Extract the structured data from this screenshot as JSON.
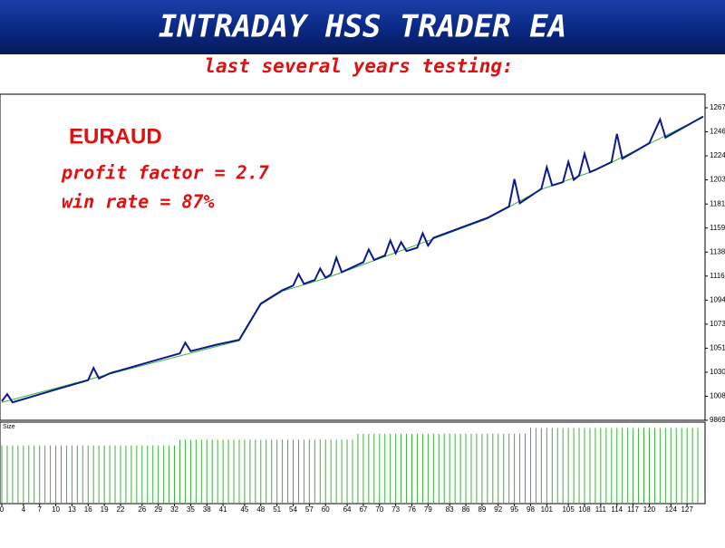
{
  "chart_data": {
    "type": "line",
    "title": "INTRADAY HSS TRADER EA",
    "subtitle": "last several years testing:",
    "annotations": [
      "EURAUD",
      "profit factor = 2.7",
      "win rate = 87%"
    ],
    "xlim": [
      0,
      130
    ],
    "xticks": [
      0,
      4,
      7,
      10,
      13,
      16,
      19,
      22,
      26,
      29,
      32,
      35,
      38,
      41,
      45,
      48,
      51,
      54,
      57,
      60,
      64,
      67,
      70,
      73,
      76,
      79,
      83,
      86,
      89,
      92,
      95,
      98,
      101,
      105,
      108,
      111,
      114,
      117,
      120,
      124,
      127
    ],
    "ylim": [
      9869,
      12800
    ],
    "yticks": [
      9869,
      10085,
      10301,
      10517,
      10733,
      10949,
      11165,
      11381,
      11597,
      11813,
      12030,
      12246,
      12462,
      12678
    ],
    "series": [
      {
        "color": "#0a1a8c",
        "x": [
          0,
          1,
          2,
          10,
          16,
          17,
          18,
          20,
          30,
          33,
          34,
          35,
          40,
          44,
          48,
          52,
          54,
          55,
          56,
          58,
          59,
          60,
          61,
          62,
          63,
          67,
          68,
          69,
          71,
          72,
          73,
          74,
          75,
          77,
          78,
          79,
          80,
          90,
          94,
          95,
          96,
          100,
          101,
          102,
          104,
          105,
          106,
          107,
          108,
          109,
          110,
          113,
          114,
          115,
          120,
          122,
          123,
          130
        ],
        "values": [
          10040,
          10104,
          10030,
          10145,
          10230,
          10340,
          10245,
          10291,
          10429,
          10470,
          10567,
          10490,
          10551,
          10592,
          10917,
          11038,
          11080,
          11184,
          11095,
          11130,
          11233,
          11150,
          11180,
          11331,
          11200,
          11290,
          11404,
          11310,
          11350,
          11485,
          11370,
          11470,
          11390,
          11420,
          11550,
          11440,
          11509,
          11688,
          11790,
          12037,
          11820,
          11950,
          12143,
          11980,
          12010,
          12191,
          12030,
          12070,
          12264,
          12100,
          12120,
          12190,
          12443,
          12220,
          12360,
          12573,
          12410,
          12600
        ]
      },
      {
        "color": "#3cb43c",
        "x": [
          0,
          20,
          44,
          48,
          52,
          60,
          80,
          90,
          100,
          110,
          120,
          130
        ],
        "values": [
          10030,
          10285,
          10585,
          10910,
          11030,
          11145,
          11500,
          11680,
          11945,
          12115,
          12355,
          12595
        ]
      }
    ],
    "size": {
      "label": "Size",
      "color": "#3cb43c",
      "ylim": [
        0,
        0.14
      ],
      "values": [
        0.1,
        0.1,
        0.1,
        0.1,
        0.1,
        0.1,
        0.1,
        0.1,
        0.1,
        0.1,
        0.1,
        0.1,
        0.1,
        0.1,
        0.1,
        0.1,
        0.1,
        0.1,
        0.1,
        0.1,
        0.1,
        0.1,
        0.1,
        0.1,
        0.1,
        0.1,
        0.1,
        0.1,
        0.1,
        0.1,
        0.1,
        0.1,
        0.1,
        0.11,
        0.11,
        0.11,
        0.11,
        0.11,
        0.11,
        0.11,
        0.11,
        0.11,
        0.11,
        0.11,
        0.11,
        0.11,
        0.11,
        0.11,
        0.11,
        0.11,
        0.11,
        0.11,
        0.11,
        0.11,
        0.11,
        0.11,
        0.11,
        0.11,
        0.11,
        0.11,
        0.11,
        0.11,
        0.11,
        0.11,
        0.11,
        0.11,
        0.12,
        0.12,
        0.12,
        0.12,
        0.12,
        0.12,
        0.12,
        0.12,
        0.12,
        0.12,
        0.12,
        0.12,
        0.12,
        0.12,
        0.12,
        0.12,
        0.12,
        0.12,
        0.12,
        0.12,
        0.12,
        0.12,
        0.12,
        0.12,
        0.12,
        0.12,
        0.12,
        0.12,
        0.12,
        0.12,
        0.12,
        0.12,
        0.13,
        0.13,
        0.13,
        0.13,
        0.13,
        0.13,
        0.13,
        0.13,
        0.13,
        0.13,
        0.13,
        0.13,
        0.13,
        0.13,
        0.13,
        0.13,
        0.13,
        0.13,
        0.13,
        0.13,
        0.13,
        0.13,
        0.13,
        0.13,
        0.13,
        0.13,
        0.13,
        0.13,
        0.13,
        0.13,
        0.13,
        0.13
      ]
    }
  }
}
